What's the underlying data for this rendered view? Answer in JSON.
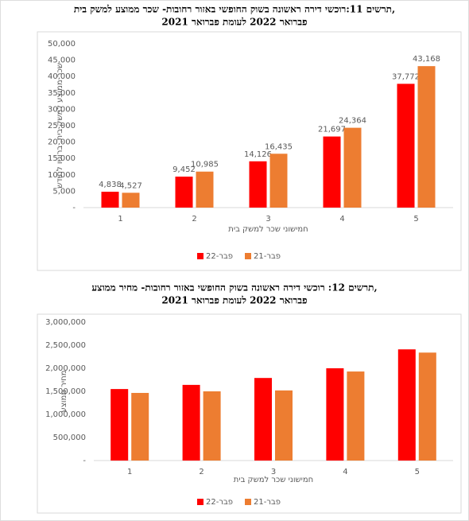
{
  "chart_data": [
    {
      "type": "bar",
      "title": "תרשים 11:רוכשי דירה ראשונה בשוק החופשי באזור רחובות- שכר ממוצע למשק בית,",
      "subtitle": "פברואר 2022 לעומת פברואר 2021",
      "y_label": "שכר ממוצע למשק בית, ברוטו לחודש",
      "x_label": "חמישוני שכר למשק בית",
      "categories": [
        "1",
        "2",
        "3",
        "4",
        "5"
      ],
      "series": [
        {
          "name": "פבר-22",
          "color": "#ff0000",
          "values": [
            4838,
            9452,
            14126,
            21697,
            37772
          ],
          "value_labels": [
            "4,838",
            "9,452",
            "14,126",
            "21,697",
            "37,772"
          ]
        },
        {
          "name": "פבר-21",
          "color": "#ed7d31",
          "values": [
            4527,
            10985,
            16435,
            24364,
            43168
          ],
          "value_labels": [
            "4,527",
            "10,985",
            "16,435",
            "24,364",
            "43,168"
          ]
        }
      ],
      "ylim": [
        0,
        50000
      ],
      "yticks": [
        {
          "value": 0,
          "label": "-"
        },
        {
          "value": 5000,
          "label": "5,000"
        },
        {
          "value": 10000,
          "label": "10,000"
        },
        {
          "value": 15000,
          "label": "15,000"
        },
        {
          "value": 20000,
          "label": "20,000"
        },
        {
          "value": 25000,
          "label": "25,000"
        },
        {
          "value": 30000,
          "label": "30,000"
        },
        {
          "value": 35000,
          "label": "35,000"
        },
        {
          "value": 40000,
          "label": "40,000"
        },
        {
          "value": 45000,
          "label": "45,000"
        },
        {
          "value": 50000,
          "label": "50,000"
        }
      ],
      "legend": "bottom"
    },
    {
      "type": "bar",
      "title": "תרשים 12: רוכשי דירה ראשונה בשוק החופשי באזור רחובות- מחיר ממוצע,",
      "subtitle": "פברואר 2022 לעומת פברואר 2021",
      "y_label": "מחיר ממוצע",
      "x_label": "חמישוני שכר למשק בית",
      "categories": [
        "1",
        "2",
        "3",
        "4",
        "5"
      ],
      "series": [
        {
          "name": "פבר-22",
          "color": "#ff0000",
          "values": [
            1550000,
            1640000,
            1790000,
            2000000,
            2410000
          ]
        },
        {
          "name": "פבר-21",
          "color": "#ed7d31",
          "values": [
            1466000,
            1500000,
            1520000,
            1930000,
            2340000
          ]
        }
      ],
      "ylim": [
        0,
        3000000
      ],
      "yticks": [
        {
          "value": 0,
          "label": "-"
        },
        {
          "value": 500000,
          "label": "500,000"
        },
        {
          "value": 1000000,
          "label": "1,000,000"
        },
        {
          "value": 1500000,
          "label": "1,500,000"
        },
        {
          "value": 2000000,
          "label": "2,000,000"
        },
        {
          "value": 2500000,
          "label": "2,500,000"
        },
        {
          "value": 3000000,
          "label": "3,000,000"
        }
      ],
      "legend": "bottom"
    }
  ]
}
